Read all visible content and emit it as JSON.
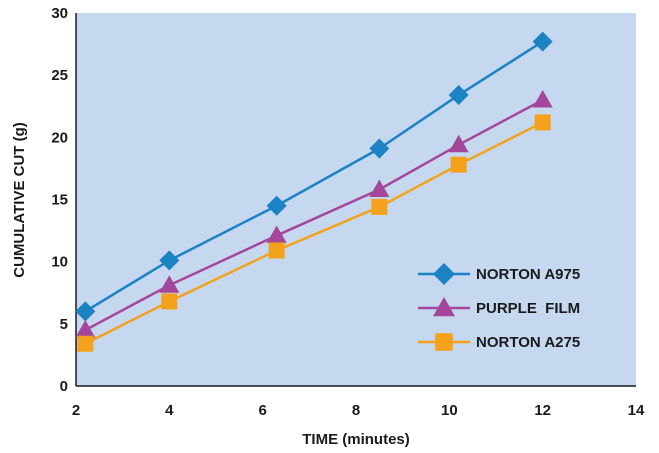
{
  "chart_data": {
    "type": "line",
    "title": "",
    "xlabel": "TIME (minutes)",
    "ylabel": "CUMULATIVE CUT (g)",
    "xlim": [
      2,
      14
    ],
    "ylim": [
      0,
      30
    ],
    "xticks": [
      2,
      4,
      6,
      8,
      10,
      12,
      14
    ],
    "yticks": [
      0,
      5,
      10,
      15,
      20,
      25,
      30
    ],
    "grid": false,
    "legend_position": "right",
    "plot_background": "#c5d8ef",
    "series": [
      {
        "name": "NORTON A975",
        "color": "#1b82c4",
        "marker": "diamond",
        "x": [
          2.2,
          4.0,
          6.3,
          8.5,
          10.2,
          12.0
        ],
        "y": [
          6.0,
          10.1,
          14.5,
          19.1,
          23.4,
          27.7
        ]
      },
      {
        "name": "PURPLE  FILM",
        "color": "#a4479b",
        "marker": "triangle",
        "x": [
          2.2,
          4.0,
          6.3,
          8.5,
          10.2,
          12.0
        ],
        "y": [
          4.5,
          8.1,
          12.1,
          15.8,
          19.4,
          23.0
        ]
      },
      {
        "name": "NORTON A275",
        "color": "#f4a21c",
        "marker": "square",
        "x": [
          2.2,
          4.0,
          6.3,
          8.5,
          10.2,
          12.0
        ],
        "y": [
          3.4,
          6.8,
          10.9,
          14.4,
          17.8,
          21.2
        ]
      }
    ]
  }
}
